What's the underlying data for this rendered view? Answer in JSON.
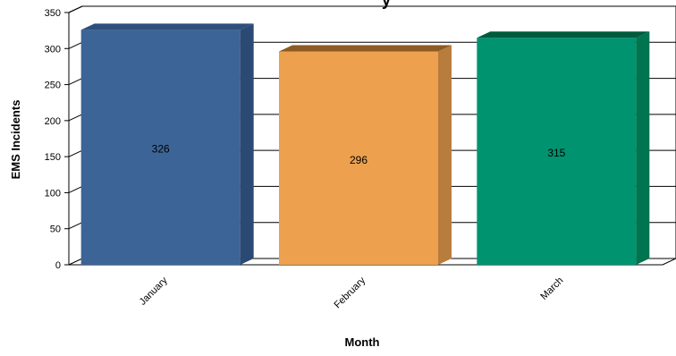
{
  "chart_data": {
    "type": "bar",
    "title": "y",
    "xlabel": "Month",
    "ylabel": "EMS Incidents",
    "categories": [
      "January",
      "February",
      "March"
    ],
    "values": [
      326,
      296,
      315
    ],
    "data_labels": [
      "326",
      "296",
      "315"
    ],
    "ylim": [
      0,
      350
    ],
    "yticks": [
      0,
      50,
      100,
      150,
      200,
      250,
      300,
      350
    ],
    "grid": true,
    "three_d": true,
    "colors": {
      "bars": [
        "#3c6497",
        "#eda04e",
        "#009370"
      ],
      "bar_sides": [
        "#2a4a74",
        "#b87d3d",
        "#00744f"
      ],
      "bar_tops": [
        "#2d4f7c",
        "#8c5a24",
        "#005a3c"
      ],
      "grid": "#000000"
    }
  }
}
